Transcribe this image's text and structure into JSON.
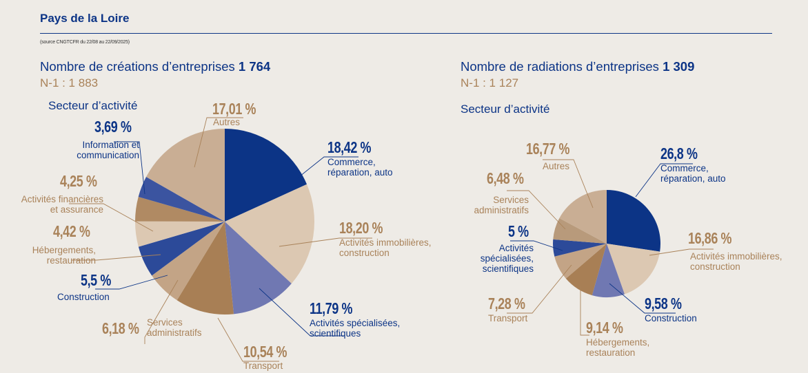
{
  "header": {
    "title": "Pays de la Loire",
    "source": "(source CNGTCFR du 22/08 au 22/09/2025)"
  },
  "colors": {
    "navy": "#0c3486",
    "text_tan": "#a98259"
  },
  "left": {
    "heading": "Nombre de créations d’entreprises",
    "total": "1 764",
    "previous": "N-1 : 1 883",
    "sector_label": "Secteur d’activité"
  },
  "right": {
    "heading": "Nombre de radiations d’entreprises",
    "total": "1 309",
    "previous": "N-1 : 1 127",
    "sector_label": "Secteur d’activité"
  },
  "chart_data": [
    {
      "type": "pie",
      "title": "Nombre de créations d’entreprises — Secteur d’activité",
      "unit": "%",
      "slices": [
        {
          "label": "Commerce,\nréparation, auto",
          "value": 18.42,
          "display": "18,42 %",
          "color": "#0c3486"
        },
        {
          "label": "Activités immobilières,\nconstruction",
          "value": 18.2,
          "display": "18,20 %",
          "color": "#dcc8b2"
        },
        {
          "label": "Activités spécialisées,\nscientifiques",
          "value": 11.79,
          "display": "11,79 %",
          "color": "#7078b2"
        },
        {
          "label": "Transport",
          "value": 10.54,
          "display": "10,54 %",
          "color": "#a87f55"
        },
        {
          "label": "Services\nadministratifs",
          "value": 6.18,
          "display": "6,18 %",
          "color": "#c3a486"
        },
        {
          "label": "Construction",
          "value": 5.5,
          "display": "5,5 %",
          "color": "#2c4a99"
        },
        {
          "label": "Hébergements,\nrestauration",
          "value": 4.42,
          "display": "4,42 %",
          "color": "#dcc8b2"
        },
        {
          "label": "Activités financières\net assurance",
          "value": 4.25,
          "display": "4,25 %",
          "color": "#b08a63"
        },
        {
          "label": "Information et\ncommunication",
          "value": 3.69,
          "display": "3,69 %",
          "color": "#3b54a0"
        },
        {
          "label": "Autres",
          "value": 17.01,
          "display": "17,01 %",
          "color": "#c9ae94"
        }
      ]
    },
    {
      "type": "pie",
      "title": "Nombre de radiations d’entreprises — Secteur d’activité",
      "unit": "%",
      "slices": [
        {
          "label": "Commerce,\nréparation, auto",
          "value": 26.8,
          "display": "26,8 %",
          "color": "#0c3486"
        },
        {
          "label": "Activités immobilières,\nconstruction",
          "value": 16.86,
          "display": "16,86 %",
          "color": "#dcc8b2"
        },
        {
          "label": "Construction",
          "value": 9.58,
          "display": "9,58 %",
          "color": "#7078b2"
        },
        {
          "label": "Hébergements,\nrestauration",
          "value": 9.14,
          "display": "9,14 %",
          "color": "#a87f55"
        },
        {
          "label": "Transport",
          "value": 7.28,
          "display": "7,28 %",
          "color": "#c3a486"
        },
        {
          "label": "Activités\nspécialisées,\nscientifiques",
          "value": 5,
          "display": "5 %",
          "color": "#2c4a99"
        },
        {
          "label": "Services\nadministratifs",
          "value": 6.48,
          "display": "6,48 %",
          "color": "#b89a7b"
        },
        {
          "label": "Autres",
          "value": 16.77,
          "display": "16,77 %",
          "color": "#c9ae94"
        }
      ]
    }
  ]
}
